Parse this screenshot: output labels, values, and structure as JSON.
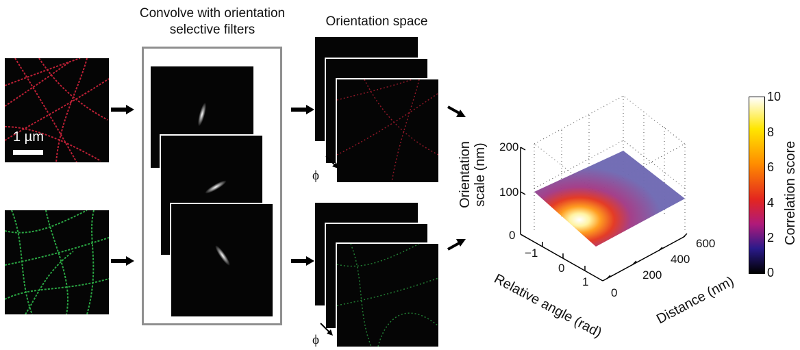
{
  "titles": {
    "filters": "Convolve with orientation selective filters",
    "orientation_space": "Orientation space"
  },
  "scale_bar_label": "1 µm",
  "phi_symbol": "ϕ",
  "plot": {
    "z_axis_label_line1": "Orientation",
    "z_axis_label_line2": "scale (nm)",
    "x_axis_label": "Relative angle (rad)",
    "y_axis_label": "Distance (nm)",
    "z_ticks": [
      "200",
      "100",
      "0"
    ],
    "x_ticks": [
      "−1",
      "0",
      "1"
    ],
    "y_ticks": [
      "0",
      "200",
      "400",
      "600"
    ]
  },
  "colorbar": {
    "label": "Correlation score",
    "ticks": [
      "10",
      "8",
      "6",
      "4",
      "2",
      "0"
    ],
    "colors": [
      "#ffffff",
      "#ffe600",
      "#ff8c00",
      "#e3261f",
      "#b01a7a",
      "#2a1a8a",
      "#000000"
    ]
  }
}
